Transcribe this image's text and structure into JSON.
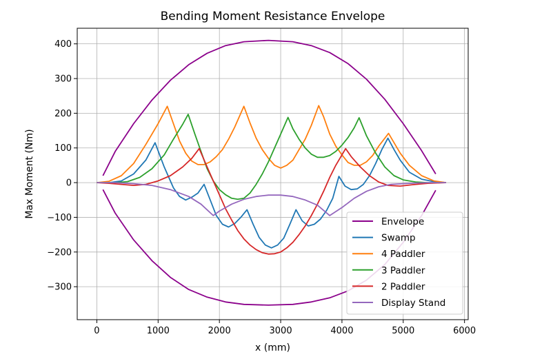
{
  "chart_data": {
    "type": "line",
    "title": "Bending Moment Resistance Envelope",
    "xlabel": "x (mm)",
    "ylabel": "Max Moment (Nm)",
    "xlim": [
      -320,
      6060
    ],
    "ylim": [
      -395,
      445
    ],
    "xticks": [
      0,
      1000,
      2000,
      3000,
      4000,
      5000,
      6000
    ],
    "xtick_labels": [
      "0",
      "1000",
      "2000",
      "3000",
      "4000",
      "5000",
      "6000"
    ],
    "yticks": [
      -300,
      -200,
      -100,
      0,
      100,
      200,
      300,
      400
    ],
    "ytick_labels": [
      "−300",
      "−200",
      "−100",
      "0",
      "100",
      "200",
      "300",
      "400"
    ],
    "grid": true,
    "legend_position": "lower-right",
    "series": [
      {
        "name": "Envelope",
        "color": "#8b008b",
        "segments": [
          [
            [
              100,
              20
            ],
            [
              300,
              90
            ],
            [
              600,
              170
            ],
            [
              900,
              238
            ],
            [
              1200,
              295
            ],
            [
              1500,
              340
            ],
            [
              1800,
              373
            ],
            [
              2100,
              395
            ],
            [
              2400,
              406
            ],
            [
              2800,
              410
            ],
            [
              3200,
              406
            ],
            [
              3500,
              395
            ],
            [
              3800,
              375
            ],
            [
              4100,
              343
            ],
            [
              4400,
              298
            ],
            [
              4700,
              240
            ],
            [
              5000,
              170
            ],
            [
              5300,
              92
            ],
            [
              5530,
              25
            ]
          ],
          [
            [
              100,
              -20
            ],
            [
              300,
              -88
            ],
            [
              600,
              -165
            ],
            [
              900,
              -225
            ],
            [
              1200,
              -273
            ],
            [
              1500,
              -308
            ],
            [
              1800,
              -330
            ],
            [
              2100,
              -344
            ],
            [
              2400,
              -351
            ],
            [
              2800,
              -353
            ],
            [
              3200,
              -351
            ],
            [
              3500,
              -344
            ],
            [
              3800,
              -332
            ],
            [
              4100,
              -312
            ],
            [
              4400,
              -281
            ],
            [
              4700,
              -236
            ],
            [
              5000,
              -172
            ],
            [
              5300,
              -95
            ],
            [
              5530,
              -22
            ]
          ]
        ]
      },
      {
        "name": "Swamp",
        "color": "#1f77b4",
        "segments": [
          [
            [
              0,
              0
            ],
            [
              200,
              0
            ],
            [
              400,
              5
            ],
            [
              600,
              25
            ],
            [
              800,
              65
            ],
            [
              950,
              115
            ],
            [
              1100,
              45
            ],
            [
              1250,
              -15
            ],
            [
              1350,
              -40
            ],
            [
              1450,
              -50
            ],
            [
              1550,
              -42
            ],
            [
              1650,
              -30
            ],
            [
              1750,
              -5
            ],
            [
              1850,
              -50
            ],
            [
              1950,
              -95
            ],
            [
              2050,
              -120
            ],
            [
              2150,
              -128
            ],
            [
              2250,
              -118
            ],
            [
              2350,
              -100
            ],
            [
              2450,
              -78
            ],
            [
              2550,
              -120
            ],
            [
              2650,
              -158
            ],
            [
              2750,
              -180
            ],
            [
              2850,
              -188
            ],
            [
              2950,
              -180
            ],
            [
              3050,
              -160
            ],
            [
              3150,
              -120
            ],
            [
              3250,
              -78
            ],
            [
              3350,
              -110
            ],
            [
              3450,
              -125
            ],
            [
              3550,
              -120
            ],
            [
              3650,
              -105
            ],
            [
              3750,
              -80
            ],
            [
              3850,
              -45
            ],
            [
              3950,
              18
            ],
            [
              4050,
              -10
            ],
            [
              4150,
              -20
            ],
            [
              4250,
              -18
            ],
            [
              4350,
              -5
            ],
            [
              4450,
              20
            ],
            [
              4550,
              55
            ],
            [
              4650,
              95
            ],
            [
              4750,
              128
            ],
            [
              4850,
              95
            ],
            [
              4950,
              65
            ],
            [
              5100,
              30
            ],
            [
              5300,
              10
            ],
            [
              5500,
              3
            ],
            [
              5700,
              0
            ]
          ]
        ]
      },
      {
        "name": "4 Paddler",
        "color": "#ff7f0e",
        "segments": [
          [
            [
              0,
              0
            ],
            [
              200,
              4
            ],
            [
              400,
              20
            ],
            [
              600,
              55
            ],
            [
              800,
              110
            ],
            [
              1000,
              170
            ],
            [
              1150,
              220
            ],
            [
              1250,
              170
            ],
            [
              1350,
              120
            ],
            [
              1450,
              85
            ],
            [
              1550,
              62
            ],
            [
              1650,
              52
            ],
            [
              1750,
              52
            ],
            [
              1850,
              60
            ],
            [
              1950,
              75
            ],
            [
              2050,
              95
            ],
            [
              2150,
              125
            ],
            [
              2250,
              160
            ],
            [
              2400,
              220
            ],
            [
              2500,
              172
            ],
            [
              2600,
              128
            ],
            [
              2700,
              95
            ],
            [
              2800,
              70
            ],
            [
              2900,
              50
            ],
            [
              3000,
              42
            ],
            [
              3100,
              50
            ],
            [
              3200,
              65
            ],
            [
              3300,
              95
            ],
            [
              3400,
              125
            ],
            [
              3500,
              165
            ],
            [
              3620,
              222
            ],
            [
              3700,
              190
            ],
            [
              3800,
              140
            ],
            [
              3900,
              105
            ],
            [
              4000,
              80
            ],
            [
              4100,
              58
            ],
            [
              4200,
              50
            ],
            [
              4300,
              50
            ],
            [
              4400,
              60
            ],
            [
              4500,
              78
            ],
            [
              4600,
              105
            ],
            [
              4760,
              142
            ],
            [
              4850,
              115
            ],
            [
              4950,
              85
            ],
            [
              5100,
              50
            ],
            [
              5300,
              20
            ],
            [
              5500,
              5
            ],
            [
              5700,
              0
            ]
          ]
        ]
      },
      {
        "name": "3 Paddler",
        "color": "#2ca02c",
        "segments": [
          [
            [
              0,
              0
            ],
            [
              300,
              0
            ],
            [
              500,
              3
            ],
            [
              700,
              15
            ],
            [
              900,
              40
            ],
            [
              1100,
              80
            ],
            [
              1250,
              125
            ],
            [
              1400,
              168
            ],
            [
              1490,
              197
            ],
            [
              1600,
              140
            ],
            [
              1700,
              90
            ],
            [
              1800,
              40
            ],
            [
              1900,
              5
            ],
            [
              2000,
              -20
            ],
            [
              2100,
              -35
            ],
            [
              2200,
              -45
            ],
            [
              2300,
              -48
            ],
            [
              2400,
              -45
            ],
            [
              2500,
              -30
            ],
            [
              2600,
              -5
            ],
            [
              2700,
              25
            ],
            [
              2800,
              60
            ],
            [
              2900,
              100
            ],
            [
              3000,
              140
            ],
            [
              3120,
              188
            ],
            [
              3200,
              155
            ],
            [
              3300,
              125
            ],
            [
              3400,
              100
            ],
            [
              3500,
              82
            ],
            [
              3600,
              73
            ],
            [
              3700,
              73
            ],
            [
              3800,
              78
            ],
            [
              3900,
              90
            ],
            [
              4000,
              108
            ],
            [
              4100,
              130
            ],
            [
              4200,
              158
            ],
            [
              4280,
              187
            ],
            [
              4400,
              135
            ],
            [
              4550,
              85
            ],
            [
              4700,
              45
            ],
            [
              4850,
              20
            ],
            [
              5000,
              8
            ],
            [
              5200,
              2
            ],
            [
              5400,
              0
            ],
            [
              5700,
              0
            ]
          ]
        ]
      },
      {
        "name": "2 Paddler",
        "color": "#d62728",
        "segments": [
          [
            [
              0,
              0
            ],
            [
              200,
              -2
            ],
            [
              400,
              -5
            ],
            [
              600,
              -8
            ],
            [
              800,
              -5
            ],
            [
              1000,
              5
            ],
            [
              1200,
              20
            ],
            [
              1400,
              45
            ],
            [
              1550,
              70
            ],
            [
              1670,
              98
            ],
            [
              1800,
              45
            ],
            [
              1900,
              5
            ],
            [
              2000,
              -35
            ],
            [
              2100,
              -75
            ],
            [
              2200,
              -108
            ],
            [
              2300,
              -138
            ],
            [
              2400,
              -162
            ],
            [
              2500,
              -180
            ],
            [
              2600,
              -193
            ],
            [
              2700,
              -202
            ],
            [
              2800,
              -206
            ],
            [
              2900,
              -205
            ],
            [
              3000,
              -200
            ],
            [
              3100,
              -188
            ],
            [
              3200,
              -172
            ],
            [
              3300,
              -150
            ],
            [
              3400,
              -125
            ],
            [
              3500,
              -95
            ],
            [
              3600,
              -62
            ],
            [
              3700,
              -25
            ],
            [
              3800,
              15
            ],
            [
              3900,
              50
            ],
            [
              4060,
              98
            ],
            [
              4150,
              75
            ],
            [
              4300,
              45
            ],
            [
              4450,
              20
            ],
            [
              4600,
              2
            ],
            [
              4750,
              -8
            ],
            [
              4950,
              -10
            ],
            [
              5150,
              -6
            ],
            [
              5400,
              -2
            ],
            [
              5700,
              0
            ]
          ]
        ]
      },
      {
        "name": "Display Stand",
        "color": "#9467bd",
        "segments": [
          [
            [
              0,
              0
            ],
            [
              300,
              0
            ],
            [
              600,
              -3
            ],
            [
              900,
              -8
            ],
            [
              1200,
              -20
            ],
            [
              1500,
              -40
            ],
            [
              1700,
              -62
            ],
            [
              1900,
              -95
            ],
            [
              2000,
              -82
            ],
            [
              2200,
              -62
            ],
            [
              2400,
              -48
            ],
            [
              2600,
              -40
            ],
            [
              2800,
              -36
            ],
            [
              3000,
              -36
            ],
            [
              3200,
              -40
            ],
            [
              3400,
              -50
            ],
            [
              3600,
              -65
            ],
            [
              3800,
              -95
            ],
            [
              4000,
              -72
            ],
            [
              4200,
              -45
            ],
            [
              4400,
              -25
            ],
            [
              4600,
              -12
            ],
            [
              4800,
              -5
            ],
            [
              5100,
              -2
            ],
            [
              5400,
              0
            ],
            [
              5700,
              0
            ]
          ]
        ]
      }
    ]
  }
}
